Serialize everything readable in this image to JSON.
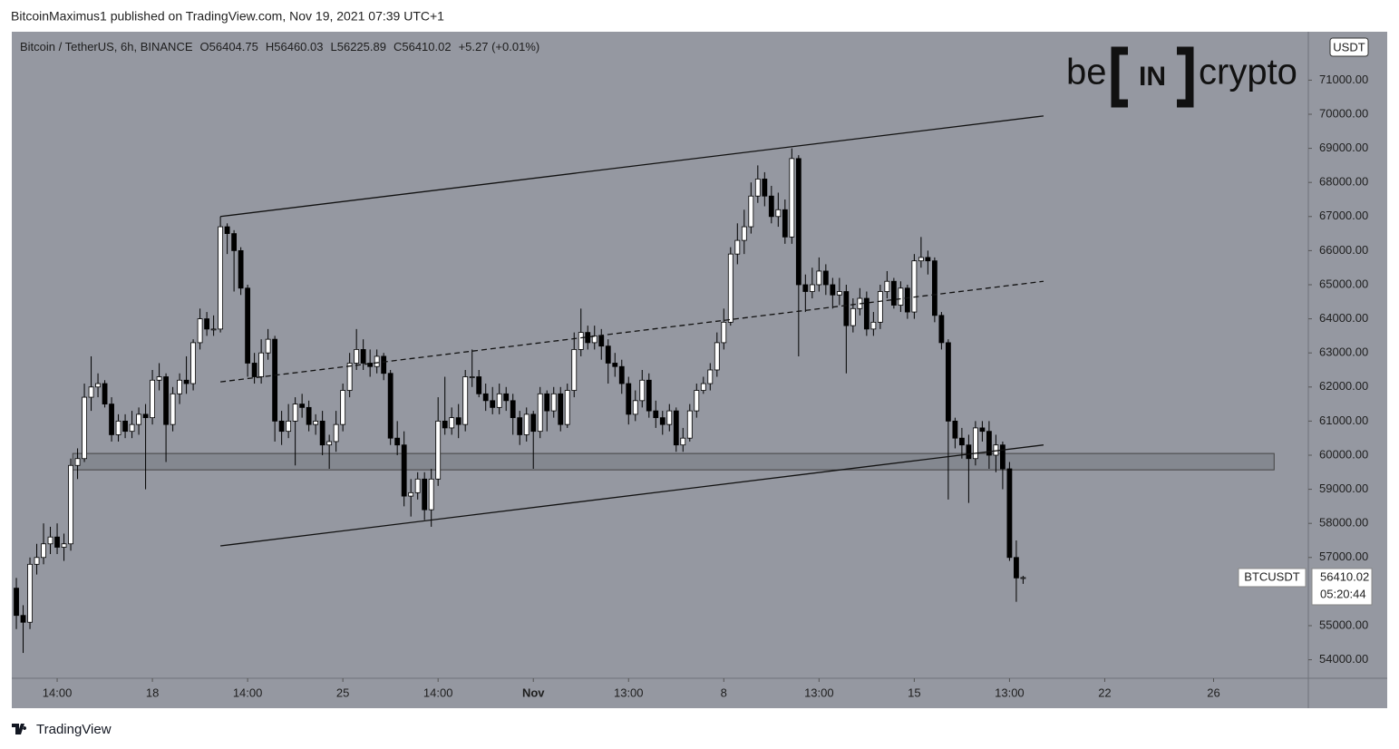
{
  "attribution": "BitcoinMaximus1 published on TradingView.com, Nov 19, 2021 07:39 UTC+1",
  "footer": "TradingView",
  "logo": {
    "left": "be",
    "middle": "IN",
    "right": "crypto"
  },
  "chart_data": {
    "type": "candlestick",
    "title": "Bitcoin / TetherUS, 6h, BINANCE",
    "legend_labels": [
      "O",
      "H",
      "L",
      "C"
    ],
    "change": "+5.27 (+0.01%)",
    "currency": "USDT",
    "symbol": "BTCUSDT",
    "countdown": "05:20:44",
    "up_color": "#ffffff",
    "down_color": "#000000",
    "ohlc": [
      [
        56100,
        56400,
        54900,
        55300
      ],
      [
        55300,
        55600,
        54200,
        55100
      ],
      [
        55100,
        57000,
        54900,
        56800
      ],
      [
        56800,
        57400,
        56500,
        57000
      ],
      [
        57000,
        58000,
        56800,
        57400
      ],
      [
        57400,
        57900,
        57100,
        57600
      ],
      [
        57600,
        58000,
        57100,
        57300
      ],
      [
        57300,
        57700,
        56900,
        57400
      ],
      [
        57400,
        59900,
        57200,
        59700
      ],
      [
        59700,
        60200,
        59300,
        59900
      ],
      [
        59900,
        62100,
        59800,
        61700
      ],
      [
        61700,
        62900,
        61300,
        62000
      ],
      [
        62000,
        62400,
        61700,
        62100
      ],
      [
        62100,
        62200,
        61400,
        61500
      ],
      [
        61500,
        61700,
        60400,
        60600
      ],
      [
        60600,
        61200,
        60400,
        61000
      ],
      [
        61000,
        61200,
        60500,
        60700
      ],
      [
        60700,
        61300,
        60500,
        60900
      ],
      [
        60900,
        61400,
        60600,
        61200
      ],
      [
        61200,
        61500,
        59000,
        61100
      ],
      [
        61100,
        62500,
        60900,
        62200
      ],
      [
        62200,
        62700,
        61900,
        62300
      ],
      [
        62300,
        62400,
        59800,
        60900
      ],
      [
        60900,
        62000,
        60700,
        61800
      ],
      [
        61800,
        62400,
        61500,
        62200
      ],
      [
        62200,
        62900,
        61800,
        62100
      ],
      [
        62100,
        63400,
        61900,
        63300
      ],
      [
        63300,
        64300,
        63100,
        64000
      ],
      [
        64000,
        64200,
        63500,
        63700
      ],
      [
        63700,
        64100,
        63500,
        63700
      ],
      [
        63700,
        67000,
        63600,
        66700
      ],
      [
        66700,
        66800,
        65900,
        66500
      ],
      [
        66500,
        66600,
        64800,
        66000
      ],
      [
        66000,
        66100,
        64700,
        64900
      ],
      [
        64900,
        65000,
        62300,
        62700
      ],
      [
        62700,
        63000,
        62100,
        62300
      ],
      [
        62300,
        63400,
        62100,
        63000
      ],
      [
        63000,
        63700,
        62800,
        63400
      ],
      [
        63400,
        63500,
        60400,
        61000
      ],
      [
        61000,
        61300,
        60300,
        60700
      ],
      [
        60700,
        61500,
        60500,
        61000
      ],
      [
        61000,
        61700,
        59700,
        61500
      ],
      [
        61500,
        61800,
        61100,
        61400
      ],
      [
        61400,
        61600,
        60700,
        60900
      ],
      [
        60900,
        61200,
        60600,
        61000
      ],
      [
        61000,
        61300,
        60000,
        60300
      ],
      [
        60300,
        60600,
        59600,
        60400
      ],
      [
        60400,
        61300,
        60100,
        60900
      ],
      [
        60900,
        62100,
        60700,
        61900
      ],
      [
        61900,
        63000,
        61700,
        62700
      ],
      [
        62700,
        63700,
        62500,
        63100
      ],
      [
        63100,
        63400,
        62500,
        62700
      ],
      [
        62700,
        63100,
        62300,
        62600
      ],
      [
        62600,
        63100,
        62400,
        62900
      ],
      [
        62900,
        63000,
        62200,
        62400
      ],
      [
        62400,
        62500,
        60300,
        60500
      ],
      [
        60500,
        61000,
        60000,
        60300
      ],
      [
        60300,
        60700,
        58500,
        58800
      ],
      [
        58800,
        59300,
        58200,
        58900
      ],
      [
        58900,
        59500,
        58700,
        59300
      ],
      [
        59300,
        59500,
        58100,
        58400
      ],
      [
        58400,
        59600,
        57900,
        59300
      ],
      [
        59300,
        61700,
        59100,
        61000
      ],
      [
        61000,
        62300,
        60600,
        60800
      ],
      [
        60800,
        61400,
        60600,
        61100
      ],
      [
        61100,
        61500,
        60500,
        60900
      ],
      [
        60900,
        62500,
        60700,
        62300
      ],
      [
        62300,
        63100,
        62000,
        62300
      ],
      [
        62300,
        62500,
        61700,
        61800
      ],
      [
        61800,
        62100,
        61300,
        61600
      ],
      [
        61600,
        62000,
        61200,
        61400
      ],
      [
        61400,
        62100,
        61200,
        61800
      ],
      [
        61800,
        62000,
        61300,
        61600
      ],
      [
        61600,
        61800,
        60600,
        61100
      ],
      [
        61100,
        61300,
        60300,
        60600
      ],
      [
        60600,
        61400,
        60400,
        61200
      ],
      [
        61200,
        61300,
        59600,
        60700
      ],
      [
        60700,
        62000,
        60500,
        61800
      ],
      [
        61800,
        61900,
        60700,
        61300
      ],
      [
        61300,
        62000,
        61100,
        61800
      ],
      [
        61800,
        62000,
        60700,
        60900
      ],
      [
        60900,
        62100,
        60800,
        61900
      ],
      [
        61900,
        63600,
        61700,
        63100
      ],
      [
        63100,
        64300,
        62900,
        63600
      ],
      [
        63600,
        63800,
        63100,
        63300
      ],
      [
        63300,
        63800,
        63100,
        63500
      ],
      [
        63500,
        63700,
        62800,
        63200
      ],
      [
        63200,
        63400,
        62100,
        62700
      ],
      [
        62700,
        63000,
        62300,
        62600
      ],
      [
        62600,
        62800,
        61800,
        62100
      ],
      [
        62100,
        62300,
        60900,
        61200
      ],
      [
        61200,
        61900,
        61000,
        61600
      ],
      [
        61600,
        62500,
        61400,
        62200
      ],
      [
        62200,
        62400,
        61100,
        61300
      ],
      [
        61300,
        61600,
        60800,
        61100
      ],
      [
        61100,
        61300,
        60600,
        60900
      ],
      [
        60900,
        61500,
        60700,
        61300
      ],
      [
        61300,
        61400,
        60100,
        60300
      ],
      [
        60300,
        60800,
        60100,
        60500
      ],
      [
        60500,
        61500,
        60400,
        61300
      ],
      [
        61300,
        62100,
        61100,
        61900
      ],
      [
        61900,
        62300,
        61800,
        62100
      ],
      [
        62100,
        62700,
        61900,
        62500
      ],
      [
        62500,
        63600,
        62300,
        63300
      ],
      [
        63300,
        64300,
        63100,
        63900
      ],
      [
        63900,
        66100,
        63800,
        65900
      ],
      [
        65900,
        66800,
        65600,
        66300
      ],
      [
        66300,
        67200,
        65900,
        66700
      ],
      [
        66700,
        68000,
        66500,
        67600
      ],
      [
        67600,
        68500,
        67400,
        68100
      ],
      [
        68100,
        68300,
        67300,
        67600
      ],
      [
        67600,
        67900,
        66800,
        67000
      ],
      [
        67000,
        67700,
        66700,
        67200
      ],
      [
        67200,
        67500,
        66200,
        66400
      ],
      [
        66400,
        69000,
        66200,
        68700
      ],
      [
        68700,
        68800,
        62900,
        65000
      ],
      [
        65000,
        65300,
        64200,
        64800
      ],
      [
        64800,
        65500,
        64600,
        65000
      ],
      [
        65000,
        65800,
        64800,
        65400
      ],
      [
        65400,
        65600,
        64700,
        65000
      ],
      [
        65000,
        65200,
        64300,
        64700
      ],
      [
        64700,
        65200,
        64400,
        64800
      ],
      [
        64800,
        65000,
        62400,
        63800
      ],
      [
        63800,
        64600,
        63600,
        64300
      ],
      [
        64300,
        64900,
        64100,
        64600
      ],
      [
        64600,
        64800,
        63500,
        63700
      ],
      [
        63700,
        64200,
        63500,
        63900
      ],
      [
        63900,
        65000,
        63700,
        64800
      ],
      [
        64800,
        65400,
        64600,
        65100
      ],
      [
        65100,
        65200,
        64300,
        64400
      ],
      [
        64400,
        65100,
        64200,
        64900
      ],
      [
        64900,
        65000,
        64000,
        64200
      ],
      [
        64200,
        65900,
        64000,
        65700
      ],
      [
        65700,
        66400,
        65500,
        65800
      ],
      [
        65800,
        66000,
        65300,
        65700
      ],
      [
        65700,
        65800,
        63900,
        64100
      ],
      [
        64100,
        64200,
        63100,
        63300
      ],
      [
        63300,
        63400,
        58700,
        61000
      ],
      [
        61000,
        61100,
        60200,
        60500
      ],
      [
        60500,
        60800,
        59900,
        60300
      ],
      [
        60300,
        60600,
        58600,
        59900
      ],
      [
        59900,
        61000,
        59700,
        60800
      ],
      [
        60800,
        61000,
        60400,
        60700
      ],
      [
        60700,
        61000,
        59600,
        60000
      ],
      [
        60000,
        60600,
        59500,
        60300
      ],
      [
        60300,
        60400,
        59000,
        59600
      ],
      [
        59600,
        59800,
        56900,
        57000
      ],
      [
        57000,
        57500,
        55700,
        56400
      ],
      [
        56404.75,
        56460.03,
        56225.89,
        56410.02
      ]
    ],
    "xlim": [
      -0.67,
      189.93
    ],
    "xticks": [
      {
        "value": 6,
        "label": "14:00"
      },
      {
        "value": 20,
        "label": "18"
      },
      {
        "value": 34,
        "label": "14:00"
      },
      {
        "value": 48,
        "label": "25"
      },
      {
        "value": 62,
        "label": "14:00"
      },
      {
        "value": 76,
        "label": "Nov"
      },
      {
        "value": 90,
        "label": "13:00"
      },
      {
        "value": 104,
        "label": "8"
      },
      {
        "value": 118,
        "label": "13:00"
      },
      {
        "value": 132,
        "label": "15"
      },
      {
        "value": 146,
        "label": "13:00"
      },
      {
        "value": 160,
        "label": "22"
      },
      {
        "value": 176,
        "label": "26"
      }
    ],
    "ylim": [
      53457,
      72420
    ],
    "yticks": [
      {
        "value": 54000,
        "label": "54000.00"
      },
      {
        "value": 55000,
        "label": "55000.00"
      },
      {
        "value": 57000,
        "label": "57000.00"
      },
      {
        "value": 58000,
        "label": "58000.00"
      },
      {
        "value": 59000,
        "label": "59000.00"
      },
      {
        "value": 60000,
        "label": "60000.00"
      },
      {
        "value": 61000,
        "label": "61000.00"
      },
      {
        "value": 62000,
        "label": "62000.00"
      },
      {
        "value": 63000,
        "label": "63000.00"
      },
      {
        "value": 64000,
        "label": "64000.00"
      },
      {
        "value": 65000,
        "label": "65000.00"
      },
      {
        "value": 66000,
        "label": "66000.00"
      },
      {
        "value": 67000,
        "label": "67000.00"
      },
      {
        "value": 68000,
        "label": "68000.00"
      },
      {
        "value": 69000,
        "label": "69000.00"
      },
      {
        "value": 70000,
        "label": "70000.00"
      },
      {
        "value": 71000,
        "label": "71000.00"
      }
    ],
    "trendlines": [
      {
        "x": [
          30,
          151
        ],
        "y": [
          67000,
          69950
        ],
        "style": "solid"
      },
      {
        "x": [
          30,
          151
        ],
        "y": [
          62150,
          65100
        ],
        "style": "dashed"
      },
      {
        "x": [
          30,
          151
        ],
        "y": [
          57340,
          60300
        ],
        "style": "solid"
      }
    ],
    "zone": {
      "x": [
        8.3,
        184.9
      ],
      "y": [
        59570,
        60050
      ]
    }
  }
}
